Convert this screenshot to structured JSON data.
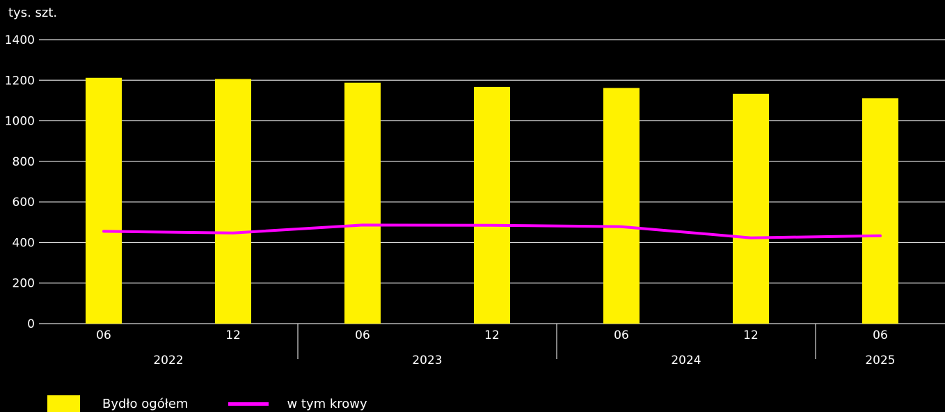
{
  "chart_data": {
    "type": "bar",
    "unit_label": "tys. szt.",
    "ylim": [
      0,
      1400
    ],
    "yticks": [
      0,
      200,
      400,
      600,
      800,
      1000,
      1200,
      1400
    ],
    "grid": true,
    "legend_position": "bottom-left",
    "categories": [
      "06",
      "12",
      "06",
      "12",
      "06",
      "12",
      "06"
    ],
    "year_groups": [
      {
        "label": "2022",
        "start": 0,
        "end": 1
      },
      {
        "label": "2023",
        "start": 2,
        "end": 3
      },
      {
        "label": "2024",
        "start": 4,
        "end": 5
      },
      {
        "label": "2025",
        "start": 6,
        "end": 6
      }
    ],
    "series": [
      {
        "name": "Bydło ogółem",
        "type": "bar",
        "color": "#fff200",
        "values": [
          1212,
          1206,
          1188,
          1167,
          1162,
          1133,
          1111
        ]
      },
      {
        "name": "w tym krowy",
        "type": "line",
        "color": "#ff00ff",
        "values": [
          455,
          447,
          486,
          485,
          478,
          423,
          433
        ]
      }
    ]
  }
}
